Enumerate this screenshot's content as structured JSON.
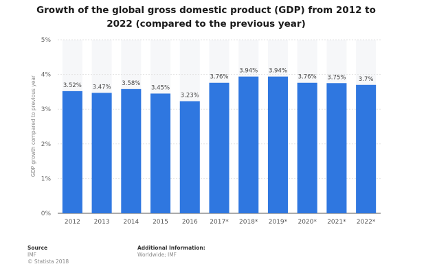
{
  "chart_data": {
    "type": "bar",
    "title": "Growth of the global gross domestic product (GDP) from 2012 to 2022 (compared to the previous year)",
    "xlabel": "",
    "ylabel": "GDP growth compared to previous year",
    "ylim": [
      0,
      5
    ],
    "yticks": [
      "0%",
      "1%",
      "2%",
      "3%",
      "4%",
      "5%"
    ],
    "grid": true,
    "categories": [
      "2012",
      "2013",
      "2014",
      "2015",
      "2016",
      "2017*",
      "2018*",
      "2019*",
      "2020*",
      "2021*",
      "2022*"
    ],
    "values": [
      3.52,
      3.47,
      3.58,
      3.45,
      3.23,
      3.76,
      3.94,
      3.94,
      3.76,
      3.75,
      3.7
    ],
    "value_labels": [
      "3.52%",
      "3.47%",
      "3.58%",
      "3.45%",
      "3.23%",
      "3.76%",
      "3.94%",
      "3.94%",
      "3.76%",
      "3.75%",
      "3.7%"
    ],
    "bar_color": "#2f77e0"
  },
  "footer": {
    "source_title": "Source",
    "source_lines": [
      "IMF",
      "© Statista 2018"
    ],
    "additional_title": "Additional Information:",
    "additional_lines": [
      "Worldwide; IMF"
    ]
  }
}
